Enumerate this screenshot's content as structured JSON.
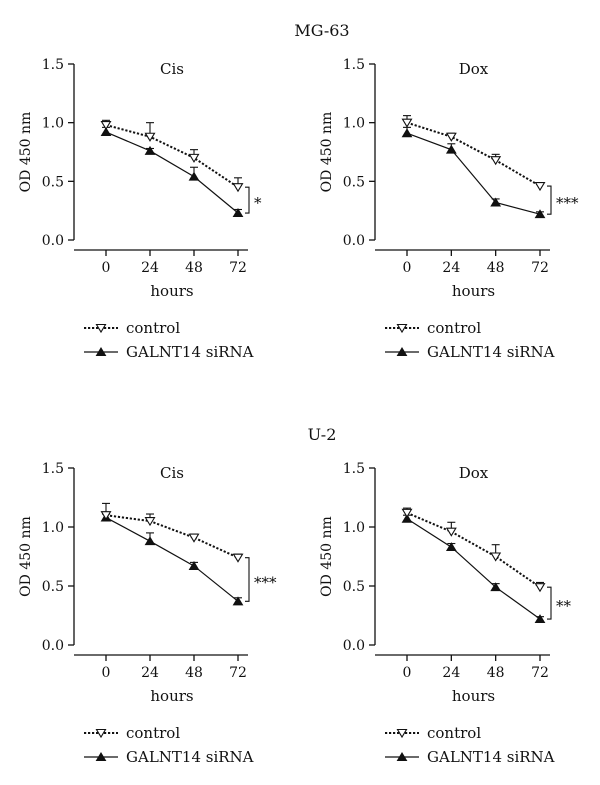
{
  "groups": [
    {
      "title": "MG-63"
    },
    {
      "title": "U-2"
    }
  ],
  "chart_data": [
    {
      "type": "line",
      "group": "MG-63",
      "title": "Cis",
      "xlabel": "hours",
      "ylabel": "OD 450 nm",
      "x": [
        0,
        24,
        48,
        72
      ],
      "ylim": [
        0,
        1.5
      ],
      "yticks": [
        "0.0",
        "0.5",
        "1.0",
        "1.5"
      ],
      "xticks": [
        "0",
        "24",
        "48",
        "72"
      ],
      "series": [
        {
          "name": "control",
          "values": [
            0.98,
            0.88,
            0.7,
            0.45
          ],
          "errors": [
            0.04,
            0.12,
            0.07,
            0.08
          ],
          "marker": "open-triangle-down",
          "dash": "dotted"
        },
        {
          "name": "GALNT14 siRNA",
          "values": [
            0.92,
            0.76,
            0.54,
            0.23
          ],
          "errors": [
            0.04,
            0.02,
            0.08,
            0.03
          ],
          "marker": "filled-triangle-up",
          "dash": "solid"
        }
      ],
      "significance": "*",
      "legend": "bottom"
    },
    {
      "type": "line",
      "group": "MG-63",
      "title": "Dox",
      "xlabel": "hours",
      "ylabel": "OD 450 nm",
      "x": [
        0,
        24,
        48,
        72
      ],
      "ylim": [
        0,
        1.5
      ],
      "yticks": [
        "0.0",
        "0.5",
        "1.0",
        "1.5"
      ],
      "xticks": [
        "0",
        "24",
        "48",
        "72"
      ],
      "series": [
        {
          "name": "control",
          "values": [
            1.0,
            0.88,
            0.68,
            0.46
          ],
          "errors": [
            0.06,
            0.03,
            0.05,
            0.02
          ],
          "marker": "open-triangle-down",
          "dash": "dotted"
        },
        {
          "name": "GALNT14 siRNA",
          "values": [
            0.91,
            0.77,
            0.32,
            0.22
          ],
          "errors": [
            0.05,
            0.05,
            0.03,
            0.02
          ],
          "marker": "filled-triangle-up",
          "dash": "solid"
        }
      ],
      "significance": "***",
      "legend": "bottom"
    },
    {
      "type": "line",
      "group": "U-2",
      "title": "Cis",
      "xlabel": "hours",
      "ylabel": "OD 450 nm",
      "x": [
        0,
        24,
        48,
        72
      ],
      "ylim": [
        0,
        1.5
      ],
      "yticks": [
        "0.0",
        "0.5",
        "1.0",
        "1.5"
      ],
      "xticks": [
        "0",
        "24",
        "48",
        "72"
      ],
      "series": [
        {
          "name": "control",
          "values": [
            1.1,
            1.05,
            0.91,
            0.74
          ],
          "errors": [
            0.1,
            0.06,
            0.03,
            0.03
          ],
          "marker": "open-triangle-down",
          "dash": "dotted"
        },
        {
          "name": "GALNT14 siRNA",
          "values": [
            1.08,
            0.88,
            0.67,
            0.37
          ],
          "errors": [
            0.03,
            0.07,
            0.03,
            0.03
          ],
          "marker": "filled-triangle-up",
          "dash": "solid"
        }
      ],
      "significance": "***",
      "legend": "bottom"
    },
    {
      "type": "line",
      "group": "U-2",
      "title": "Dox",
      "xlabel": "hours",
      "ylabel": "OD 450 nm",
      "x": [
        0,
        24,
        48,
        72
      ],
      "ylim": [
        0,
        1.5
      ],
      "yticks": [
        "0.0",
        "0.5",
        "1.0",
        "1.5"
      ],
      "xticks": [
        "0",
        "24",
        "48",
        "72"
      ],
      "series": [
        {
          "name": "control",
          "values": [
            1.12,
            0.96,
            0.75,
            0.49
          ],
          "errors": [
            0.04,
            0.08,
            0.1,
            0.04
          ],
          "marker": "open-triangle-down",
          "dash": "dotted"
        },
        {
          "name": "GALNT14 siRNA",
          "values": [
            1.07,
            0.83,
            0.49,
            0.22
          ],
          "errors": [
            0.03,
            0.03,
            0.03,
            0.02
          ],
          "marker": "filled-triangle-up",
          "dash": "solid"
        }
      ],
      "significance": "**",
      "legend": "bottom"
    }
  ]
}
